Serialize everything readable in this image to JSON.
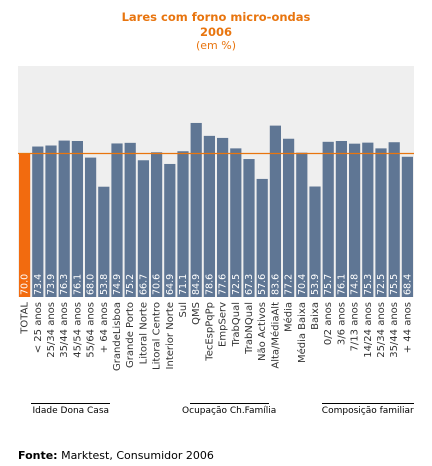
{
  "chart_data": {
    "type": "bar",
    "title": "Lares com forno micro-ondas",
    "year": "2006",
    "subtitle": "(em %)",
    "categories": [
      "TOTAL",
      "< 25 anos",
      "25/34 anos",
      "35/44 anos",
      "45/54 anos",
      "55/64 anos",
      "+ 64 anos",
      "GrandeLisboa",
      "Grande Porto",
      "Litoral Norte",
      "Litoral Centro",
      "Interior Norte",
      "Sul",
      "QMS",
      "TecEspPqPp",
      "EmpServ",
      "TrabQual",
      "TrabNQual",
      "Não Activos",
      "Alta/MédiaAlt",
      "Média",
      "Média Baixa",
      "Baixa",
      "0/2 anos",
      "3/6 anos",
      "7/13 anos",
      "14/24 anos",
      "25/34 anos",
      "35/44 anos",
      "+ 44 anos"
    ],
    "values": [
      70.0,
      73.4,
      73.9,
      76.3,
      76.1,
      68.0,
      53.8,
      74.9,
      75.2,
      66.7,
      70.6,
      64.9,
      71.1,
      84.9,
      78.6,
      77.6,
      72.5,
      67.3,
      57.6,
      83.6,
      77.2,
      70.4,
      53.9,
      75.7,
      76.1,
      74.8,
      75.3,
      72.5,
      75.5,
      68.4
    ],
    "labels": [
      "70.0",
      "73.4",
      "73.9",
      "76.3",
      "76.1",
      "68.0",
      "53.8",
      "74.9",
      "75.2",
      "66.7",
      "70.6",
      "64.9",
      "71.1",
      "84.9",
      "78.6",
      "77.6",
      "72.5",
      "67.3",
      "57.6",
      "83.6",
      "77.2",
      "70.4",
      "53.9",
      "75.7",
      "76.1",
      "74.8",
      "75.3",
      "72.5",
      "75.5",
      "68.4"
    ],
    "groups": [
      {
        "name": "Idade Dona Casa",
        "first": 1,
        "last": 6
      },
      {
        "name": "Ocupação Ch.Família",
        "first": 13,
        "last": 18
      },
      {
        "name": "Composição familiar",
        "first": 23,
        "last": 29
      }
    ],
    "reference_line": 70.0,
    "ylim": [
      0,
      100
    ],
    "grid": false,
    "colors": {
      "highlight": "#f26b0f",
      "bar": "#5f7694",
      "reference": "#e8750f",
      "plot_bg": "#efefef",
      "title": "#e8750f"
    }
  },
  "source": {
    "label": "Fonte:",
    "text": " Marktest, Consumidor 2006"
  }
}
